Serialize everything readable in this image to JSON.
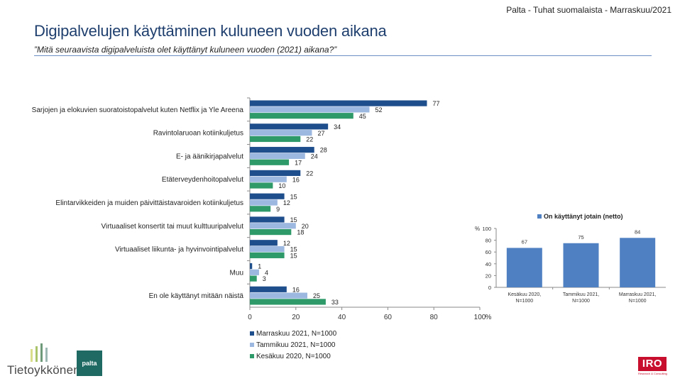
{
  "header": {
    "source": "Palta - Tuhat suomalaista - Marraskuu/2021",
    "title": "Digipalvelujen käyttäminen kuluneen vuoden aikana",
    "subtitle": "”Mitä seuraavista digipalveluista olet käyttänyt kuluneen vuoden (2021) aikana?”"
  },
  "chart_data": [
    {
      "type": "bar",
      "orientation": "horizontal",
      "categories": [
        "Sarjojen ja elokuvien suoratoistopalvelut kuten Netflix ja Yle Areena",
        "Ravintolaruoan kotiinkuljetus",
        "E- ja äänikirjapalvelut",
        "Etäterveydenhoitopalvelut",
        "Elintarvikkeiden ja muiden päivittäistavaroiden kotiinkuljetus",
        "Virtuaaliset konsertit tai muut kulttuuripalvelut",
        "Virtuaaliset liikunta- ja hyvinvointipalvelut",
        "Muu",
        "En ole käyttänyt mitään näistä"
      ],
      "series": [
        {
          "name": "Marraskuu 2021, N=1000",
          "color": "#1f4e8c",
          "values": [
            77,
            34,
            28,
            22,
            15,
            15,
            12,
            1,
            16
          ]
        },
        {
          "name": "Tammikuu 2021, N=1000",
          "color": "#9db8e0",
          "values": [
            52,
            27,
            24,
            16,
            12,
            20,
            15,
            4,
            25
          ]
        },
        {
          "name": "Kesäkuu 2020, N=1000",
          "color": "#2e9a6a",
          "values": [
            45,
            22,
            17,
            10,
            9,
            18,
            15,
            3,
            33
          ]
        }
      ],
      "xlim": [
        0,
        100
      ],
      "xticks": [
        0,
        20,
        40,
        60,
        80,
        100
      ],
      "xunit": "%",
      "legend_position": "bottom"
    },
    {
      "type": "bar",
      "orientation": "vertical",
      "title": "On käyttänyt jotain (netto)",
      "ylabel": "%",
      "categories": [
        "Kesäkuu 2020, N=1000",
        "Tammikuu 2021, N=1000",
        "Marraskuu 2021, N=1000"
      ],
      "category_lines": [
        [
          "Kesäkuu 2020,",
          "N=1000"
        ],
        [
          "Tammikuu 2021,",
          "N=1000"
        ],
        [
          "Marraskuu 2021,",
          "N=1000"
        ]
      ],
      "values": [
        67,
        75,
        84
      ],
      "color": "#4f81c2",
      "ylim": [
        0,
        100
      ],
      "yticks": [
        0,
        20,
        40,
        60,
        80,
        100
      ]
    }
  ],
  "logos": {
    "tietoykkonen": "Tietoykkönen",
    "palta": "palta",
    "iro": "IRO",
    "iro_tagline": "Research & Consulting"
  }
}
